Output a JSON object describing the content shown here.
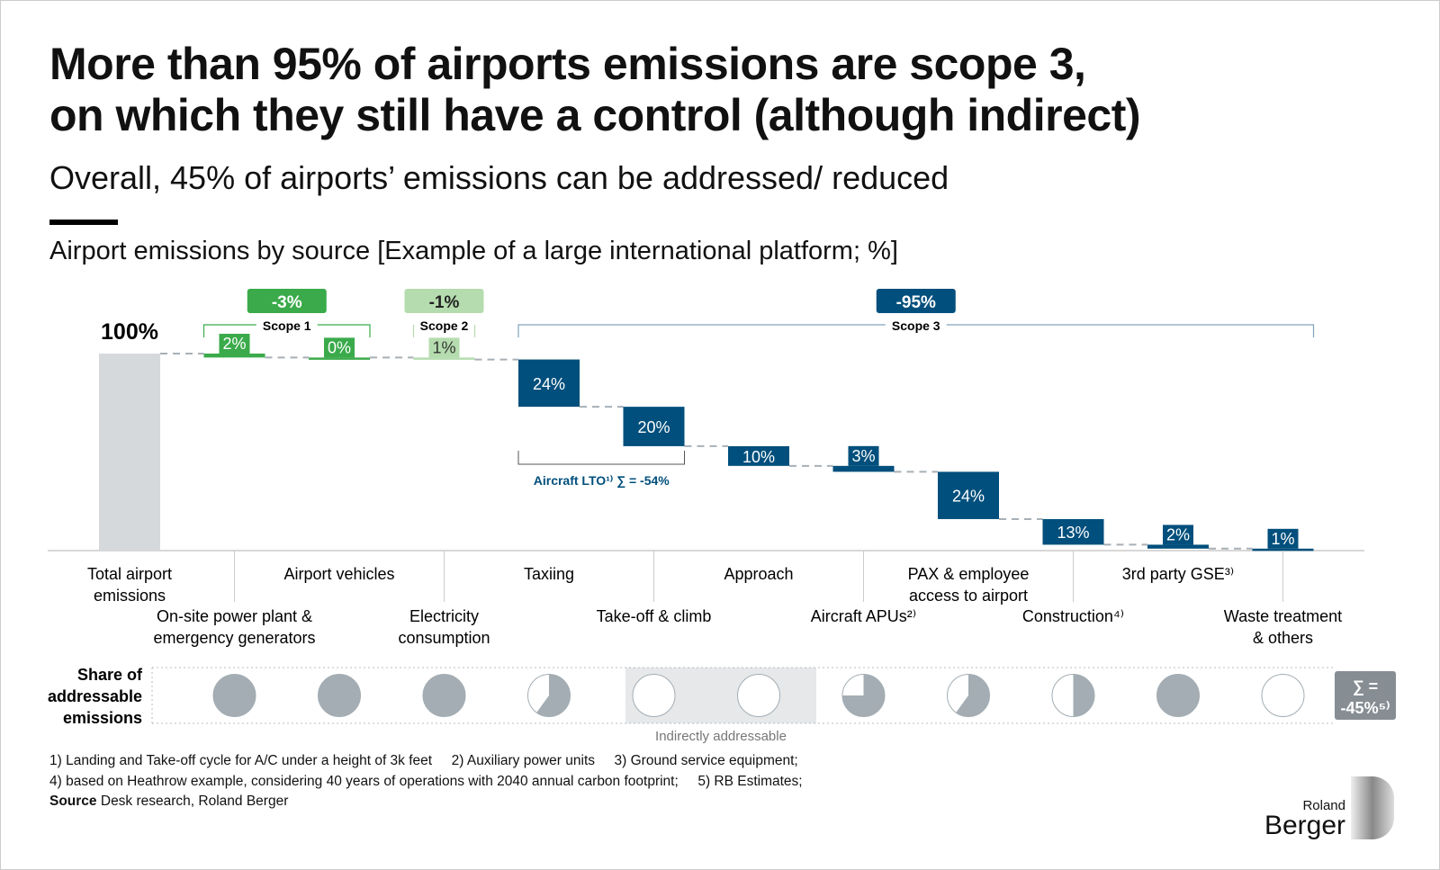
{
  "title_line1": "More than 95% of airports emissions are scope 3,",
  "title_line2": "on which they still have a control (although indirect)",
  "subtitle": "Overall, 45% of airports’ emissions can be addressed/ reduced",
  "chart_data": {
    "type": "waterfall",
    "title": "Airport emissions by source [Example of a large international platform; %]",
    "total_label": "100%",
    "categories": [
      "Total airport emissions",
      "On-site power plant & emergency generators",
      "Airport vehicles",
      "Electricity consumption",
      "Taxiing",
      "Take-off & climb",
      "Approach",
      "Aircraft APUs²⁾",
      "PAX & employee access to airport",
      "Construction⁴⁾",
      "3rd party GSE³⁾",
      "Waste treatment & others"
    ],
    "category_lines": [
      [
        "Total airport",
        "emissions"
      ],
      [
        "On-site power plant &",
        "emergency generators"
      ],
      [
        "Airport vehicles"
      ],
      [
        "Electricity",
        "consumption"
      ],
      [
        "Taxiing"
      ],
      [
        "Take-off & climb"
      ],
      [
        "Approach"
      ],
      [
        "Aircraft APUs²⁾"
      ],
      [
        "PAX & employee",
        "access to airport"
      ],
      [
        "Construction⁴⁾"
      ],
      [
        "3rd party GSE³⁾"
      ],
      [
        "Waste treatment",
        "& others"
      ]
    ],
    "values": [
      100,
      2,
      0,
      1,
      24,
      20,
      10,
      3,
      24,
      13,
      2,
      1
    ],
    "value_labels": [
      "100%",
      "2%",
      "0%",
      "1%",
      "24%",
      "20%",
      "10%",
      "3%",
      "24%",
      "13%",
      "2%",
      "1%"
    ],
    "scope": [
      "total",
      "scope1",
      "scope1",
      "scope2",
      "scope3",
      "scope3",
      "scope3",
      "scope3",
      "scope3",
      "scope3",
      "scope3",
      "scope3"
    ],
    "groups": [
      {
        "name": "Scope 1",
        "total": "-3%",
        "from": 1,
        "to": 2,
        "color": "#3aaa4a"
      },
      {
        "name": "Scope 2",
        "total": "-1%",
        "from": 3,
        "to": 3,
        "color": "#b5dcae"
      },
      {
        "name": "Scope 3",
        "total": "-95%",
        "from": 4,
        "to": 11,
        "color": "#004f7c"
      }
    ],
    "lto_bracket": {
      "label": "Aircraft LTO¹⁾ ∑ = -54%",
      "from": 4,
      "to": 5
    },
    "colors": {
      "total": "#d6d9dc",
      "scope1": "#3aaa4a",
      "scope2": "#b5dcae",
      "scope3": "#004f7c",
      "pie": "#a3adb3"
    },
    "addressable": {
      "label_lines": [
        "Share of",
        "addressable",
        "emissions"
      ],
      "shares": [
        null,
        1,
        1,
        1,
        0.6,
        0,
        0,
        0.75,
        0.6,
        0.5,
        1,
        0
      ],
      "indirect_label": "Indirectly addressable",
      "sum_lines": [
        "∑ =",
        "-45%⁵⁾"
      ]
    }
  },
  "footnotes": [
    "1) Landing and Take-off cycle for A/C under a height of 3k feet     2) Auxiliary power units     3) Ground service equipment;",
    "4) based on Heathrow example, considering 40 years of operations with 2040 annual carbon footprint;     5) RB Estimates;"
  ],
  "source_label": "Source",
  "source_text": " Desk research, Roland Berger",
  "logo": {
    "line1": "Roland",
    "line2": "Berger"
  }
}
